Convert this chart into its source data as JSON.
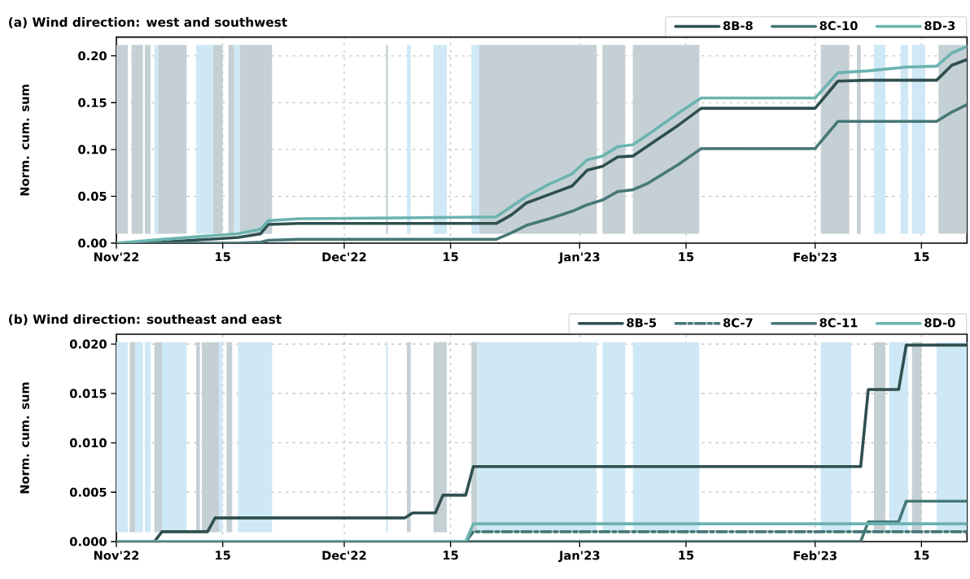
{
  "chart_data": [
    {
      "type": "line",
      "title": "(a) Wind direction: west and southwest",
      "ylabel": "Norm. cum. sum",
      "xlim": [
        "2022-11-01",
        "2023-02-21"
      ],
      "ylim": [
        0,
        0.22
      ],
      "xticks": [
        {
          "value": "2022-11-01",
          "label": "Nov'22"
        },
        {
          "value": "2022-11-15",
          "label": "15"
        },
        {
          "value": "2022-12-01",
          "label": "Dec'22"
        },
        {
          "value": "2022-12-15",
          "label": "15"
        },
        {
          "value": "2023-01-01",
          "label": "Jan'23"
        },
        {
          "value": "2023-01-15",
          "label": "15"
        },
        {
          "value": "2023-02-01",
          "label": "Feb'23"
        },
        {
          "value": "2023-02-15",
          "label": "15"
        }
      ],
      "yticks": [
        {
          "value": 0,
          "label": "0.00"
        },
        {
          "value": 0.05,
          "label": "0.05"
        },
        {
          "value": 0.1,
          "label": "0.10"
        },
        {
          "value": 0.15,
          "label": "0.15"
        },
        {
          "value": 0.2,
          "label": "0.20"
        }
      ],
      "grid": true,
      "legend": "top right",
      "line_style": "solid",
      "x": [
        "2022-11-01",
        "2022-11-07",
        "2022-11-17",
        "2022-11-20",
        "2022-11-21",
        "2022-11-25",
        "2022-12-21",
        "2022-12-23",
        "2022-12-25",
        "2022-12-28",
        "2022-12-31",
        "2023-01-02",
        "2023-01-04",
        "2023-01-06",
        "2023-01-08",
        "2023-01-10",
        "2023-01-14",
        "2023-01-17",
        "2023-02-01",
        "2023-02-04",
        "2023-02-08",
        "2023-02-13",
        "2023-02-17",
        "2023-02-19",
        "2023-02-21"
      ],
      "series": [
        {
          "name": "8B-8",
          "color": "#2f4f4f",
          "values": [
            0,
            0.001,
            0.006,
            0.01,
            0.02,
            0.021,
            0.021,
            0.03,
            0.043,
            0.052,
            0.061,
            0.078,
            0.082,
            0.092,
            0.093,
            0.104,
            0.126,
            0.144,
            0.144,
            0.173,
            0.174,
            0.174,
            0.174,
            0.19,
            0.196
          ]
        },
        {
          "name": "8C-10",
          "color": "#467877",
          "values": [
            0,
            0,
            0,
            0.001,
            0.003,
            0.004,
            0.004,
            0.011,
            0.019,
            0.026,
            0.034,
            0.041,
            0.046,
            0.055,
            0.057,
            0.064,
            0.084,
            0.101,
            0.101,
            0.13,
            0.13,
            0.13,
            0.13,
            0.14,
            0.148
          ]
        },
        {
          "name": "8D-3",
          "color": "#6bb3b0",
          "values": [
            0,
            0.004,
            0.01,
            0.015,
            0.024,
            0.026,
            0.028,
            0.039,
            0.05,
            0.063,
            0.074,
            0.089,
            0.093,
            0.103,
            0.105,
            0.116,
            0.139,
            0.155,
            0.155,
            0.182,
            0.184,
            0.188,
            0.189,
            0.203,
            0.21
          ]
        }
      ],
      "bands": [
        {
          "axis": "x",
          "from": "2022-11-01",
          "to": "2022-11-02T12:00",
          "color": "#c5d0d5"
        },
        {
          "axis": "x",
          "from": "2022-11-03",
          "to": "2022-11-04T12:00",
          "color": "#c5d0d5"
        },
        {
          "axis": "x",
          "from": "2022-11-04T18:00",
          "to": "2022-11-05T12:00",
          "color": "#c5d0d5"
        },
        {
          "axis": "x",
          "from": "2022-11-06",
          "to": "2022-11-06T12:00",
          "color": "#cfe8f5"
        },
        {
          "axis": "x",
          "from": "2022-11-06T12:00",
          "to": "2022-11-10T06:00",
          "color": "#c5d0d5"
        },
        {
          "axis": "x",
          "from": "2022-11-11T12:00",
          "to": "2022-11-13T18:00",
          "color": "#cfe8f5"
        },
        {
          "axis": "x",
          "from": "2022-11-13T18:00",
          "to": "2022-11-15",
          "color": "#c5d0d5"
        },
        {
          "axis": "x",
          "from": "2022-11-15T18:00",
          "to": "2022-11-16T12:00",
          "color": "#c5d0d5"
        },
        {
          "axis": "x",
          "from": "2022-11-16T12:00",
          "to": "2022-11-17T06:00",
          "color": "#cfe8f5"
        },
        {
          "axis": "x",
          "from": "2022-11-17T06:00",
          "to": "2022-11-21T12:00",
          "color": "#c5d0d5"
        },
        {
          "axis": "x",
          "from": "2022-12-06T12:00",
          "to": "2022-12-06T18:00",
          "color": "#c5d0d5"
        },
        {
          "axis": "x",
          "from": "2022-12-09T06:00",
          "to": "2022-12-09T18:00",
          "color": "#cfe8f5"
        },
        {
          "axis": "x",
          "from": "2022-12-12T18:00",
          "to": "2022-12-14T12:00",
          "color": "#cfe8f5"
        },
        {
          "axis": "x",
          "from": "2022-12-17T18:00",
          "to": "2022-12-18T18:00",
          "color": "#cfe8f5"
        },
        {
          "axis": "x",
          "from": "2022-12-18T18:00",
          "to": "2023-01-03T06:00",
          "color": "#c5d0d5"
        },
        {
          "axis": "x",
          "from": "2023-01-04",
          "to": "2023-01-07",
          "color": "#c5d0d5"
        },
        {
          "axis": "x",
          "from": "2023-01-08",
          "to": "2023-01-16T18:00",
          "color": "#c5d0d5"
        },
        {
          "axis": "x",
          "from": "2023-02-01T18:00",
          "to": "2023-02-05T12:00",
          "color": "#c5d0d5"
        },
        {
          "axis": "x",
          "from": "2023-02-06T12:00",
          "to": "2023-02-07",
          "color": "#c5d0d5"
        },
        {
          "axis": "x",
          "from": "2023-02-08T18:00",
          "to": "2023-02-10T06:00",
          "color": "#cfe8f5"
        },
        {
          "axis": "x",
          "from": "2023-02-12T06:00",
          "to": "2023-02-13T06:00",
          "color": "#cfe8f5"
        },
        {
          "axis": "x",
          "from": "2023-02-13T18:00",
          "to": "2023-02-15T12:00",
          "color": "#cfe8f5"
        },
        {
          "axis": "x",
          "from": "2023-02-17T06:00",
          "to": "2023-02-21",
          "color": "#c5d0d5"
        }
      ]
    },
    {
      "type": "line",
      "title": "(b) Wind direction: southeast and east",
      "ylabel": "Norm. cum. sum",
      "xlim": [
        "2022-11-01",
        "2023-02-21"
      ],
      "ylim": [
        0,
        0.021
      ],
      "xticks": [
        {
          "value": "2022-11-01",
          "label": "Nov'22"
        },
        {
          "value": "2022-11-15",
          "label": "15"
        },
        {
          "value": "2022-12-01",
          "label": "Dec'22"
        },
        {
          "value": "2022-12-15",
          "label": "15"
        },
        {
          "value": "2023-01-01",
          "label": "Jan'23"
        },
        {
          "value": "2023-01-15",
          "label": "15"
        },
        {
          "value": "2023-02-01",
          "label": "Feb'23"
        },
        {
          "value": "2023-02-15",
          "label": "15"
        }
      ],
      "yticks": [
        {
          "value": 0,
          "label": "0.000"
        },
        {
          "value": 0.005,
          "label": "0.005"
        },
        {
          "value": 0.01,
          "label": "0.010"
        },
        {
          "value": 0.015,
          "label": "0.015"
        },
        {
          "value": 0.02,
          "label": "0.020"
        }
      ],
      "grid": true,
      "legend": "top right",
      "series": [
        {
          "name": "8B-5",
          "color": "#2f4f4f",
          "line_style": "solid",
          "x": [
            "2022-11-01",
            "2022-11-06",
            "2022-11-07",
            "2022-11-13",
            "2022-11-14",
            "2022-12-09",
            "2022-12-10",
            "2022-12-13",
            "2022-12-14",
            "2022-12-17",
            "2022-12-18",
            "2023-02-07",
            "2023-02-08",
            "2023-02-12",
            "2023-02-13",
            "2023-02-21"
          ],
          "values": [
            0,
            0,
            0.001,
            0.001,
            0.0024,
            0.0024,
            0.0029,
            0.0029,
            0.0047,
            0.0047,
            0.0076,
            0.0076,
            0.0154,
            0.0154,
            0.0199,
            0.0199
          ]
        },
        {
          "name": "8C-7",
          "color": "#467877",
          "line_style": "dashed",
          "x": [
            "2022-11-01",
            "2022-12-17",
            "2022-12-18",
            "2023-02-21"
          ],
          "values": [
            0,
            0,
            0.001,
            0.001
          ]
        },
        {
          "name": "8C-11",
          "color": "#467877",
          "line_style": "solid",
          "x": [
            "2022-11-01",
            "2023-02-07",
            "2023-02-08",
            "2023-02-12",
            "2023-02-13",
            "2023-02-21"
          ],
          "values": [
            0,
            0,
            0.002,
            0.002,
            0.0041,
            0.0041
          ]
        },
        {
          "name": "8D-0",
          "color": "#6bb3b0",
          "line_style": "solid",
          "x": [
            "2022-11-01",
            "2022-12-17",
            "2022-12-18",
            "2023-02-21"
          ],
          "values": [
            0,
            0,
            0.0018,
            0.0018
          ]
        }
      ],
      "bands": [
        {
          "axis": "x",
          "from": "2022-11-01",
          "to": "2022-11-02T12:00",
          "color": "#cfe8f5"
        },
        {
          "axis": "x",
          "from": "2022-11-02T18:00",
          "to": "2022-11-03T12:00",
          "color": "#c5d0d5"
        },
        {
          "axis": "x",
          "from": "2022-11-03T12:00",
          "to": "2022-11-04T12:00",
          "color": "#cfe8f5"
        },
        {
          "axis": "x",
          "from": "2022-11-04T18:00",
          "to": "2022-11-05T12:00",
          "color": "#cfe8f5"
        },
        {
          "axis": "x",
          "from": "2022-11-06",
          "to": "2022-11-07",
          "color": "#c5d0d5"
        },
        {
          "axis": "x",
          "from": "2022-11-07",
          "to": "2022-11-10T06:00",
          "color": "#cfe8f5"
        },
        {
          "axis": "x",
          "from": "2022-11-11T12:00",
          "to": "2022-11-12",
          "color": "#c5d0d5"
        },
        {
          "axis": "x",
          "from": "2022-11-12T06:00",
          "to": "2022-11-14T12:00",
          "color": "#c5d0d5"
        },
        {
          "axis": "x",
          "from": "2022-11-14T12:00",
          "to": "2022-11-15",
          "color": "#cfe8f5"
        },
        {
          "axis": "x",
          "from": "2022-11-15T12:00",
          "to": "2022-11-16T06:00",
          "color": "#c5d0d5"
        },
        {
          "axis": "x",
          "from": "2022-11-17",
          "to": "2022-11-21T12:00",
          "color": "#cfe8f5"
        },
        {
          "axis": "x",
          "from": "2022-12-06T12:00",
          "to": "2022-12-06T18:00",
          "color": "#cfe8f5"
        },
        {
          "axis": "x",
          "from": "2022-12-09T06:00",
          "to": "2022-12-09T18:00",
          "color": "#c5d0d5"
        },
        {
          "axis": "x",
          "from": "2022-12-12T18:00",
          "to": "2022-12-14T12:00",
          "color": "#c5d0d5"
        },
        {
          "axis": "x",
          "from": "2022-12-17T18:00",
          "to": "2022-12-18T12:00",
          "color": "#c5d0d5"
        },
        {
          "axis": "x",
          "from": "2022-12-18T12:00",
          "to": "2023-01-03T06:00",
          "color": "#cfe8f5"
        },
        {
          "axis": "x",
          "from": "2023-01-04",
          "to": "2023-01-07",
          "color": "#cfe8f5"
        },
        {
          "axis": "x",
          "from": "2023-01-08",
          "to": "2023-01-16T18:00",
          "color": "#cfe8f5"
        },
        {
          "axis": "x",
          "from": "2023-02-01T18:00",
          "to": "2023-02-05T18:00",
          "color": "#cfe8f5"
        },
        {
          "axis": "x",
          "from": "2023-02-08T18:00",
          "to": "2023-02-10T06:00",
          "color": "#c5d0d5"
        },
        {
          "axis": "x",
          "from": "2023-02-10T18:00",
          "to": "2023-02-13T06:00",
          "color": "#cfe8f5"
        },
        {
          "axis": "x",
          "from": "2023-02-13T18:00",
          "to": "2023-02-15",
          "color": "#c5d0d5"
        },
        {
          "axis": "x",
          "from": "2023-02-17",
          "to": "2023-02-21",
          "color": "#cfe8f5"
        }
      ]
    }
  ]
}
